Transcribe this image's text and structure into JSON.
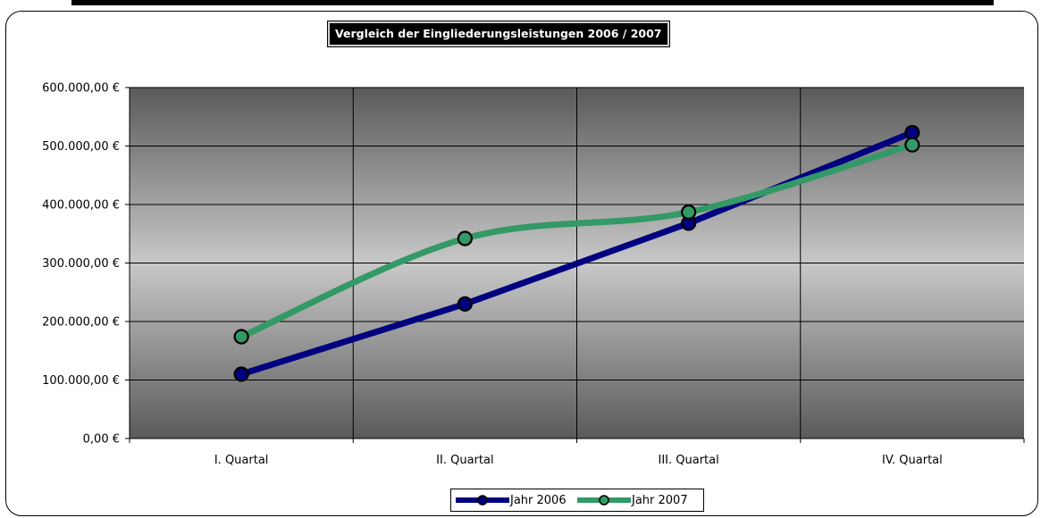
{
  "chart_data": {
    "type": "line",
    "title": "Vergleich der Eingliederungsleistungen 2006 / 2007",
    "categories": [
      "I. Quartal",
      "II. Quartal",
      "III. Quartal",
      "IV. Quartal"
    ],
    "y_tick_labels": [
      "0,00 €",
      "100.000,00 €",
      "200.000,00 €",
      "300.000,00 €",
      "400.000,00 €",
      "500.000,00 €",
      "600.000,00 €"
    ],
    "y_ticks": [
      0,
      100000,
      200000,
      300000,
      400000,
      500000,
      600000
    ],
    "ylim": [
      0,
      600000
    ],
    "grid": true,
    "legend_position": "bottom",
    "series": [
      {
        "name": "Jahr 2006",
        "values": [
          110000,
          230000,
          368000,
          523000
        ],
        "color": "#000080",
        "marker_color": "#000080",
        "smooth": false
      },
      {
        "name": "Jahr 2007",
        "values": [
          174000,
          342000,
          387000,
          502000
        ],
        "color": "#339966",
        "marker_color": "#339966",
        "smooth": true
      }
    ],
    "colors": {
      "plot_gradient_edge": "#5a5a5a",
      "plot_gradient_center": "#c8c8c8"
    }
  }
}
